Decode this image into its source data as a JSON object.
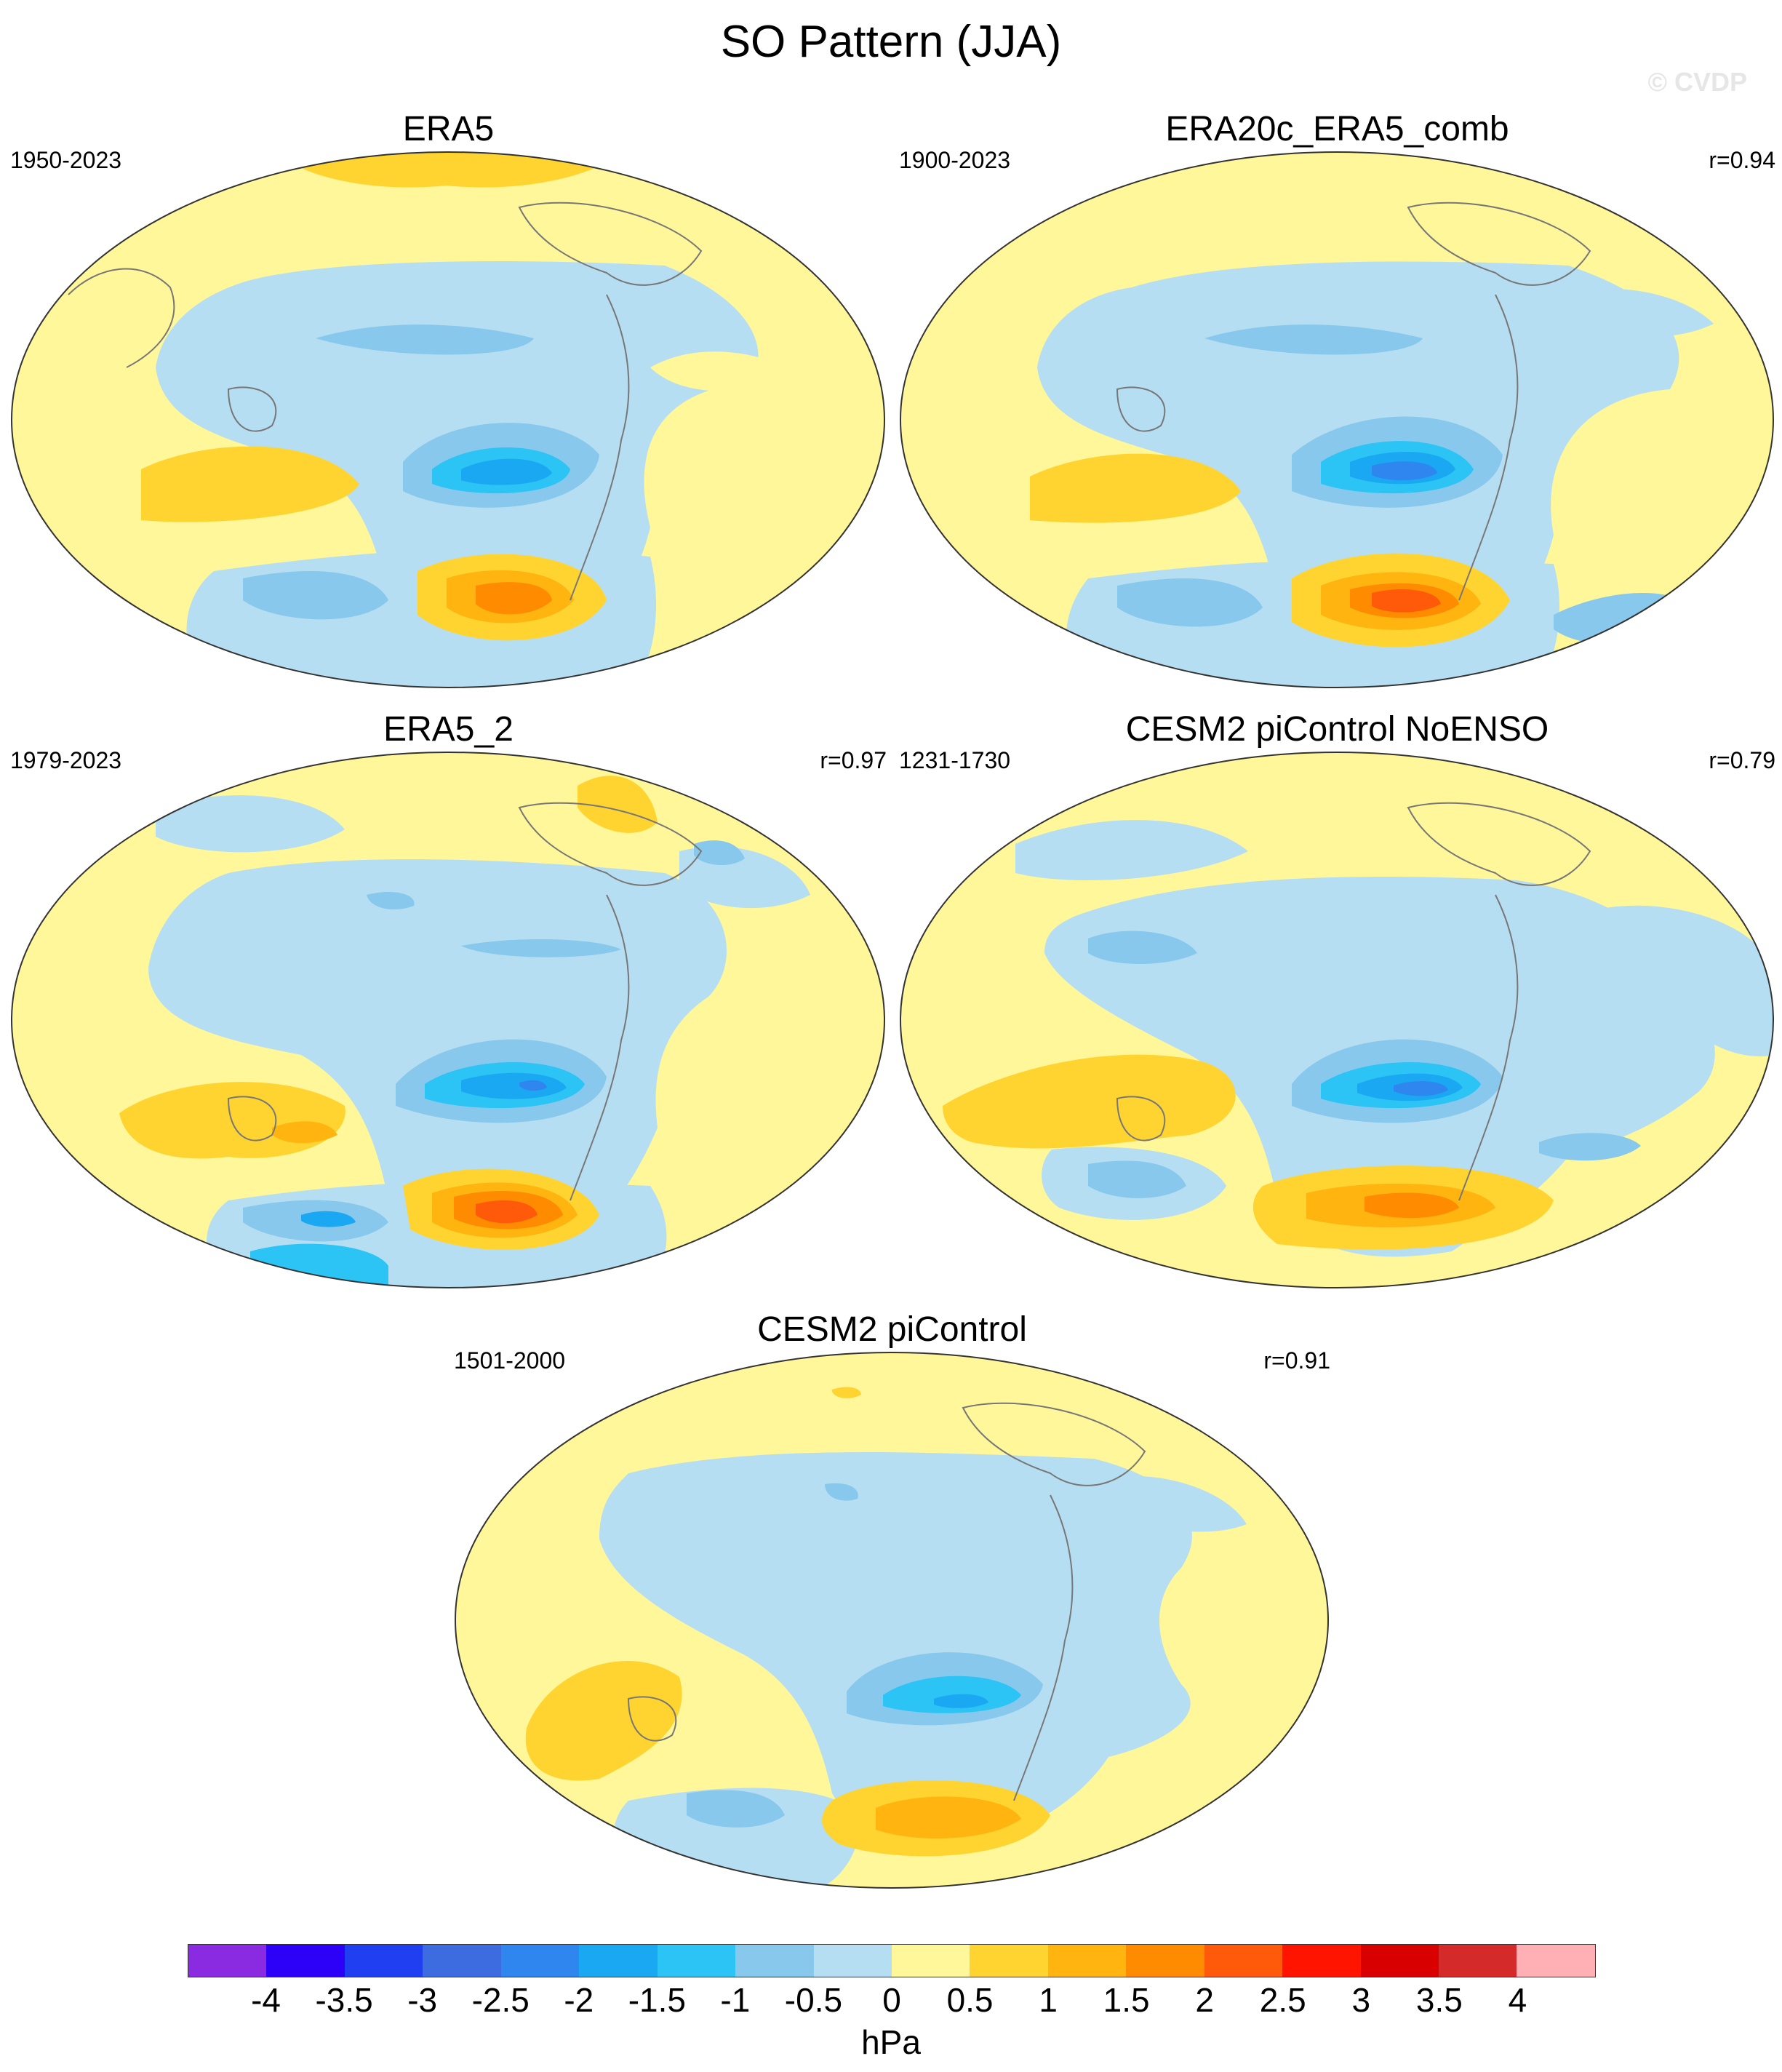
{
  "title": "SO Pattern (JJA)",
  "watermark": "© CVDP",
  "panels": [
    {
      "title": "ERA5",
      "period": "1950-2023",
      "corr": ""
    },
    {
      "title": "ERA20c_ERA5_comb",
      "period": "1900-2023",
      "corr": "r=0.94"
    },
    {
      "title": "ERA5_2",
      "period": "1979-2023",
      "corr": "r=0.97"
    },
    {
      "title": "CESM2 piControl NoENSO",
      "period": "1231-1730",
      "corr": "r=0.79"
    },
    {
      "title": "CESM2 piControl",
      "period": "1501-2000",
      "corr": "r=0.91"
    }
  ],
  "colorbar": {
    "unit": "hPa",
    "labels": [
      "-4",
      "-3.5",
      "-3",
      "-2.5",
      "-2",
      "-1.5",
      "-1",
      "-0.5",
      "0",
      "0.5",
      "1",
      "1.5",
      "2",
      "2.5",
      "3",
      "3.5",
      "4"
    ],
    "colors": [
      "#8a2be2",
      "#2d00f7",
      "#1f3ff0",
      "#3d6be0",
      "#2f86ef",
      "#1aa8f2",
      "#2cc3f5",
      "#88c8ec",
      "#b6def2",
      "#fff799",
      "#ffd431",
      "#ffb40f",
      "#ff8c00",
      "#ff5a0a",
      "#ff1400",
      "#d80000",
      "#d42a2a",
      "#ffb0b5"
    ]
  }
}
